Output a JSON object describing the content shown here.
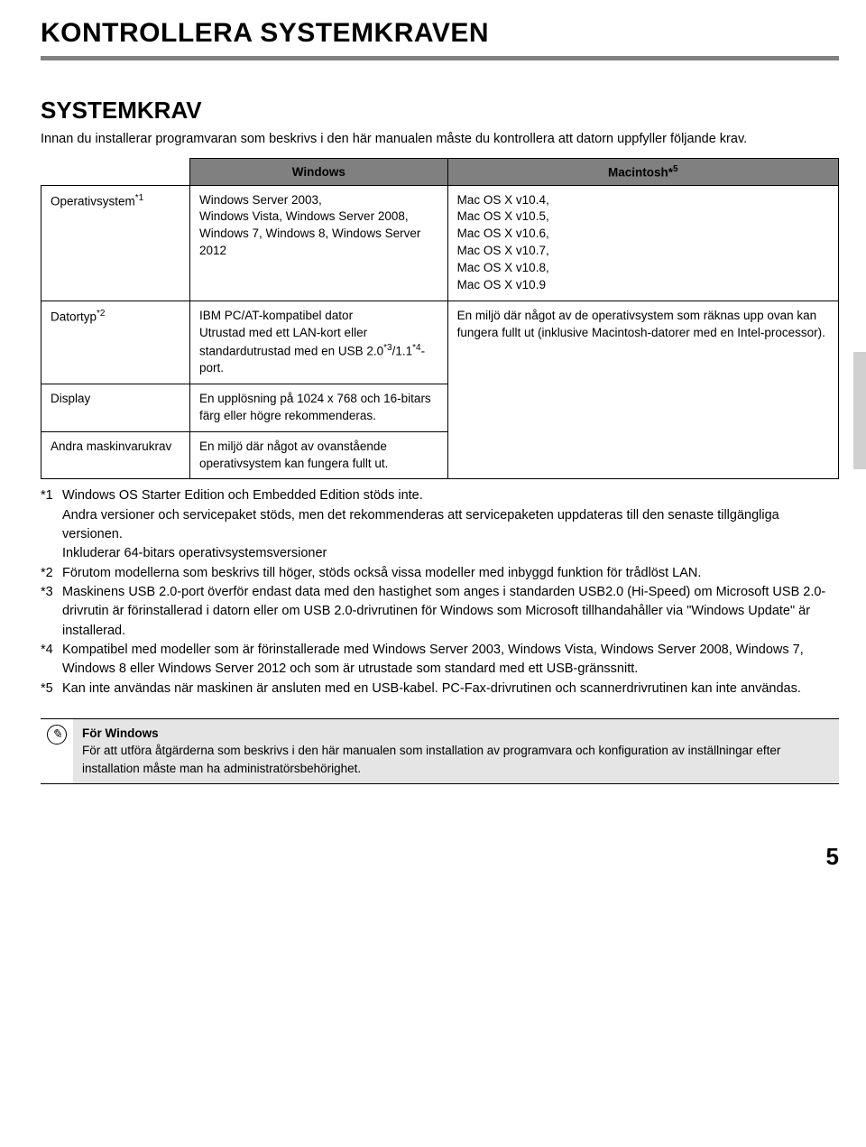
{
  "page": {
    "title": "KONTROLLERA SYSTEMKRAVEN",
    "section_title": "SYSTEMKRAV",
    "intro": "Innan du installerar programvaran som beskrivs i den här manualen måste du kontrollera att datorn uppfyller följande krav.",
    "page_number": "5"
  },
  "table": {
    "headers": {
      "windows": "Windows",
      "mac": "Macintosh*",
      "mac_sup": "5"
    },
    "rows": [
      {
        "label": "Operativsystem",
        "label_sup": "*1",
        "win": "Windows Server 2003,\nWindows Vista, Windows Server 2008,\nWindows 7, Windows 8, Windows Server 2012",
        "mac": "Mac OS X v10.4,\nMac OS X v10.5,\nMac OS X v10.6,\nMac OS X v10.7,\nMac OS X v10.8,\nMac OS X v10.9"
      },
      {
        "label": "Datortyp",
        "label_sup": "*2",
        "win": "IBM PC/AT-kompatibel dator\nUtrustad med ett LAN-kort eller standardutrustad med en USB 2.0*3/1.1*4-port.",
        "win_sup_a": "*3",
        "win_sup_b": "*4",
        "mac_rowspan_text": "En miljö där något av de operativsystem som räknas upp ovan kan fungera fullt ut (inklusive Macintosh-datorer med en Intel-processor)."
      },
      {
        "label": "Display",
        "win": "En upplösning på 1024 x 768 och 16-bitars färg eller högre rekommenderas."
      },
      {
        "label": "Andra maskinvarukrav",
        "win": "En miljö där något av ovanstående operativsystem kan fungera fullt ut."
      }
    ]
  },
  "footnotes": {
    "fn1_a": "Windows OS Starter Edition och Embedded Edition stöds inte.",
    "fn1_b": "Andra versioner och servicepaket stöds, men det rekommenderas att servicepaketen uppdateras till den senaste tillgängliga versionen.",
    "fn1_c": "Inkluderar 64-bitars operativsystemsversioner",
    "fn2": "Förutom modellerna som beskrivs till höger, stöds också vissa modeller med inbyggd funktion för trådlöst LAN.",
    "fn3": "Maskinens USB 2.0-port överför endast data med den hastighet som anges i standarden USB2.0 (Hi-Speed) om Microsoft USB 2.0-drivrutin är förinstallerad i datorn eller om USB 2.0-drivrutinen för Windows som Microsoft tillhandahåller via \"Windows Update\" är installerad.",
    "fn4": "Kompatibel med modeller som är förinstallerade med Windows Server 2003, Windows Vista, Windows Server 2008, Windows 7, Windows 8 eller Windows Server 2012 och som är utrustade som standard med ett USB-gränssnitt.",
    "fn5": "Kan inte användas när maskinen är ansluten med en USB-kabel. PC-Fax-drivrutinen och scannerdrivrutinen kan inte användas.",
    "n1": "*1",
    "n2": "*2",
    "n3": "*3",
    "n4": "*4",
    "n5": "*5"
  },
  "note": {
    "title": "För Windows",
    "body": "För att utföra åtgärderna som beskrivs i den här manualen som installation av programvara och konfiguration av inställningar efter installation måste man ha administratörsbehörighet."
  },
  "styling": {
    "header_bg": "#808080",
    "note_bg": "#e5e5e5",
    "title_fontsize": 30,
    "section_fontsize": 26,
    "body_fontsize": 14.5,
    "table_fontsize": 13.5
  }
}
